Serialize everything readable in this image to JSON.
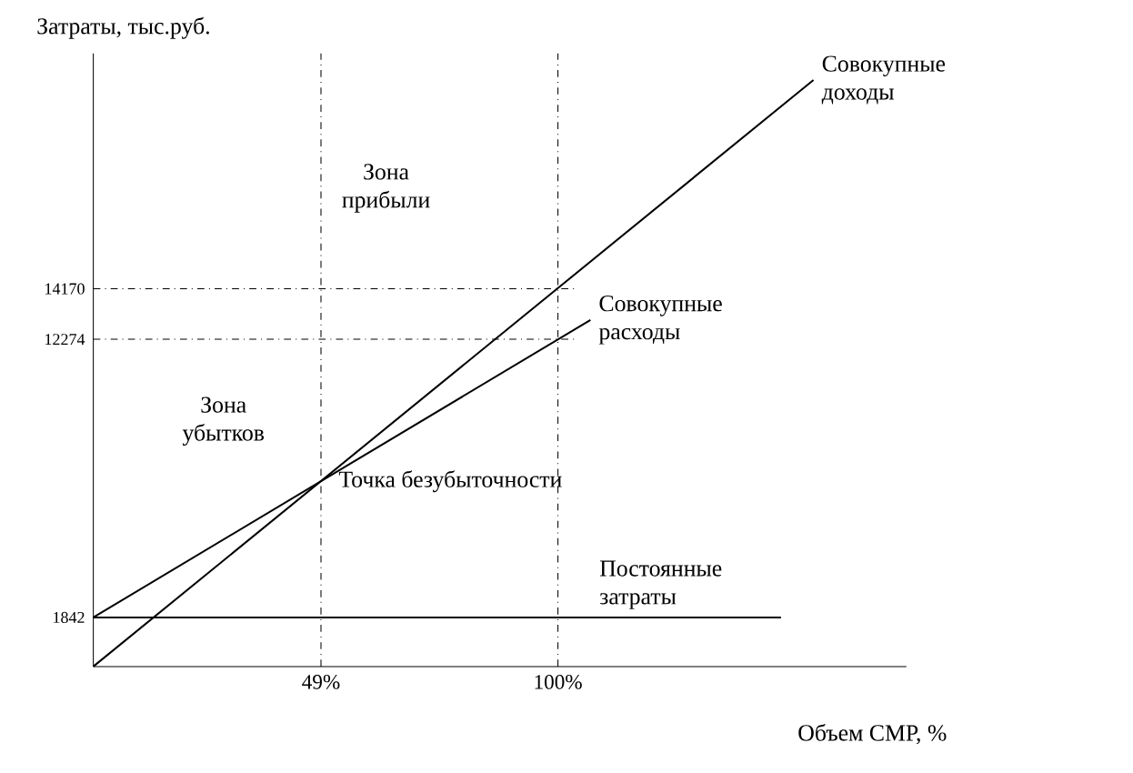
{
  "chart_data": {
    "type": "line",
    "xlabel": "Объем СМР, %",
    "ylabel": "Затраты, тыс.руб.",
    "series": [
      {
        "name": "Совокупные доходы",
        "color": "#000000",
        "x": [
          0,
          155
        ],
        "values": [
          0,
          22000
        ]
      },
      {
        "name": "Совокупные расходы",
        "color": "#000000",
        "x": [
          0,
          107
        ],
        "values": [
          1842,
          13000
        ]
      },
      {
        "name": "Постоянные затраты",
        "color": "#000000",
        "x": [
          0,
          148
        ],
        "values": [
          1842,
          1842
        ]
      }
    ],
    "xlim": [
      0,
      175
    ],
    "ylim": [
      0,
      23000
    ],
    "xticks": [
      {
        "value": 49,
        "label": "49%"
      },
      {
        "value": 100,
        "label": "100%"
      }
    ],
    "yticks": [
      1842,
      12274,
      14170
    ],
    "ref_lines": [
      {
        "axis": "x",
        "value": 49,
        "color": "#000000",
        "line_style": "dashdot"
      },
      {
        "axis": "x",
        "value": 100,
        "color": "#000000",
        "line_style": "dashdot"
      },
      {
        "axis": "y",
        "value": 12274,
        "color": "#000000",
        "line_style": "dashdot"
      },
      {
        "axis": "y",
        "value": 14170,
        "color": "#000000",
        "line_style": "dashdot"
      }
    ],
    "annotations": [
      "Зона прибыли",
      "Зона убытков",
      {
        "text": "Точка безубыточности",
        "x": 49,
        "y": 6950
      }
    ],
    "grid": false,
    "legend": false,
    "marker": "none",
    "line_style": "solid"
  }
}
